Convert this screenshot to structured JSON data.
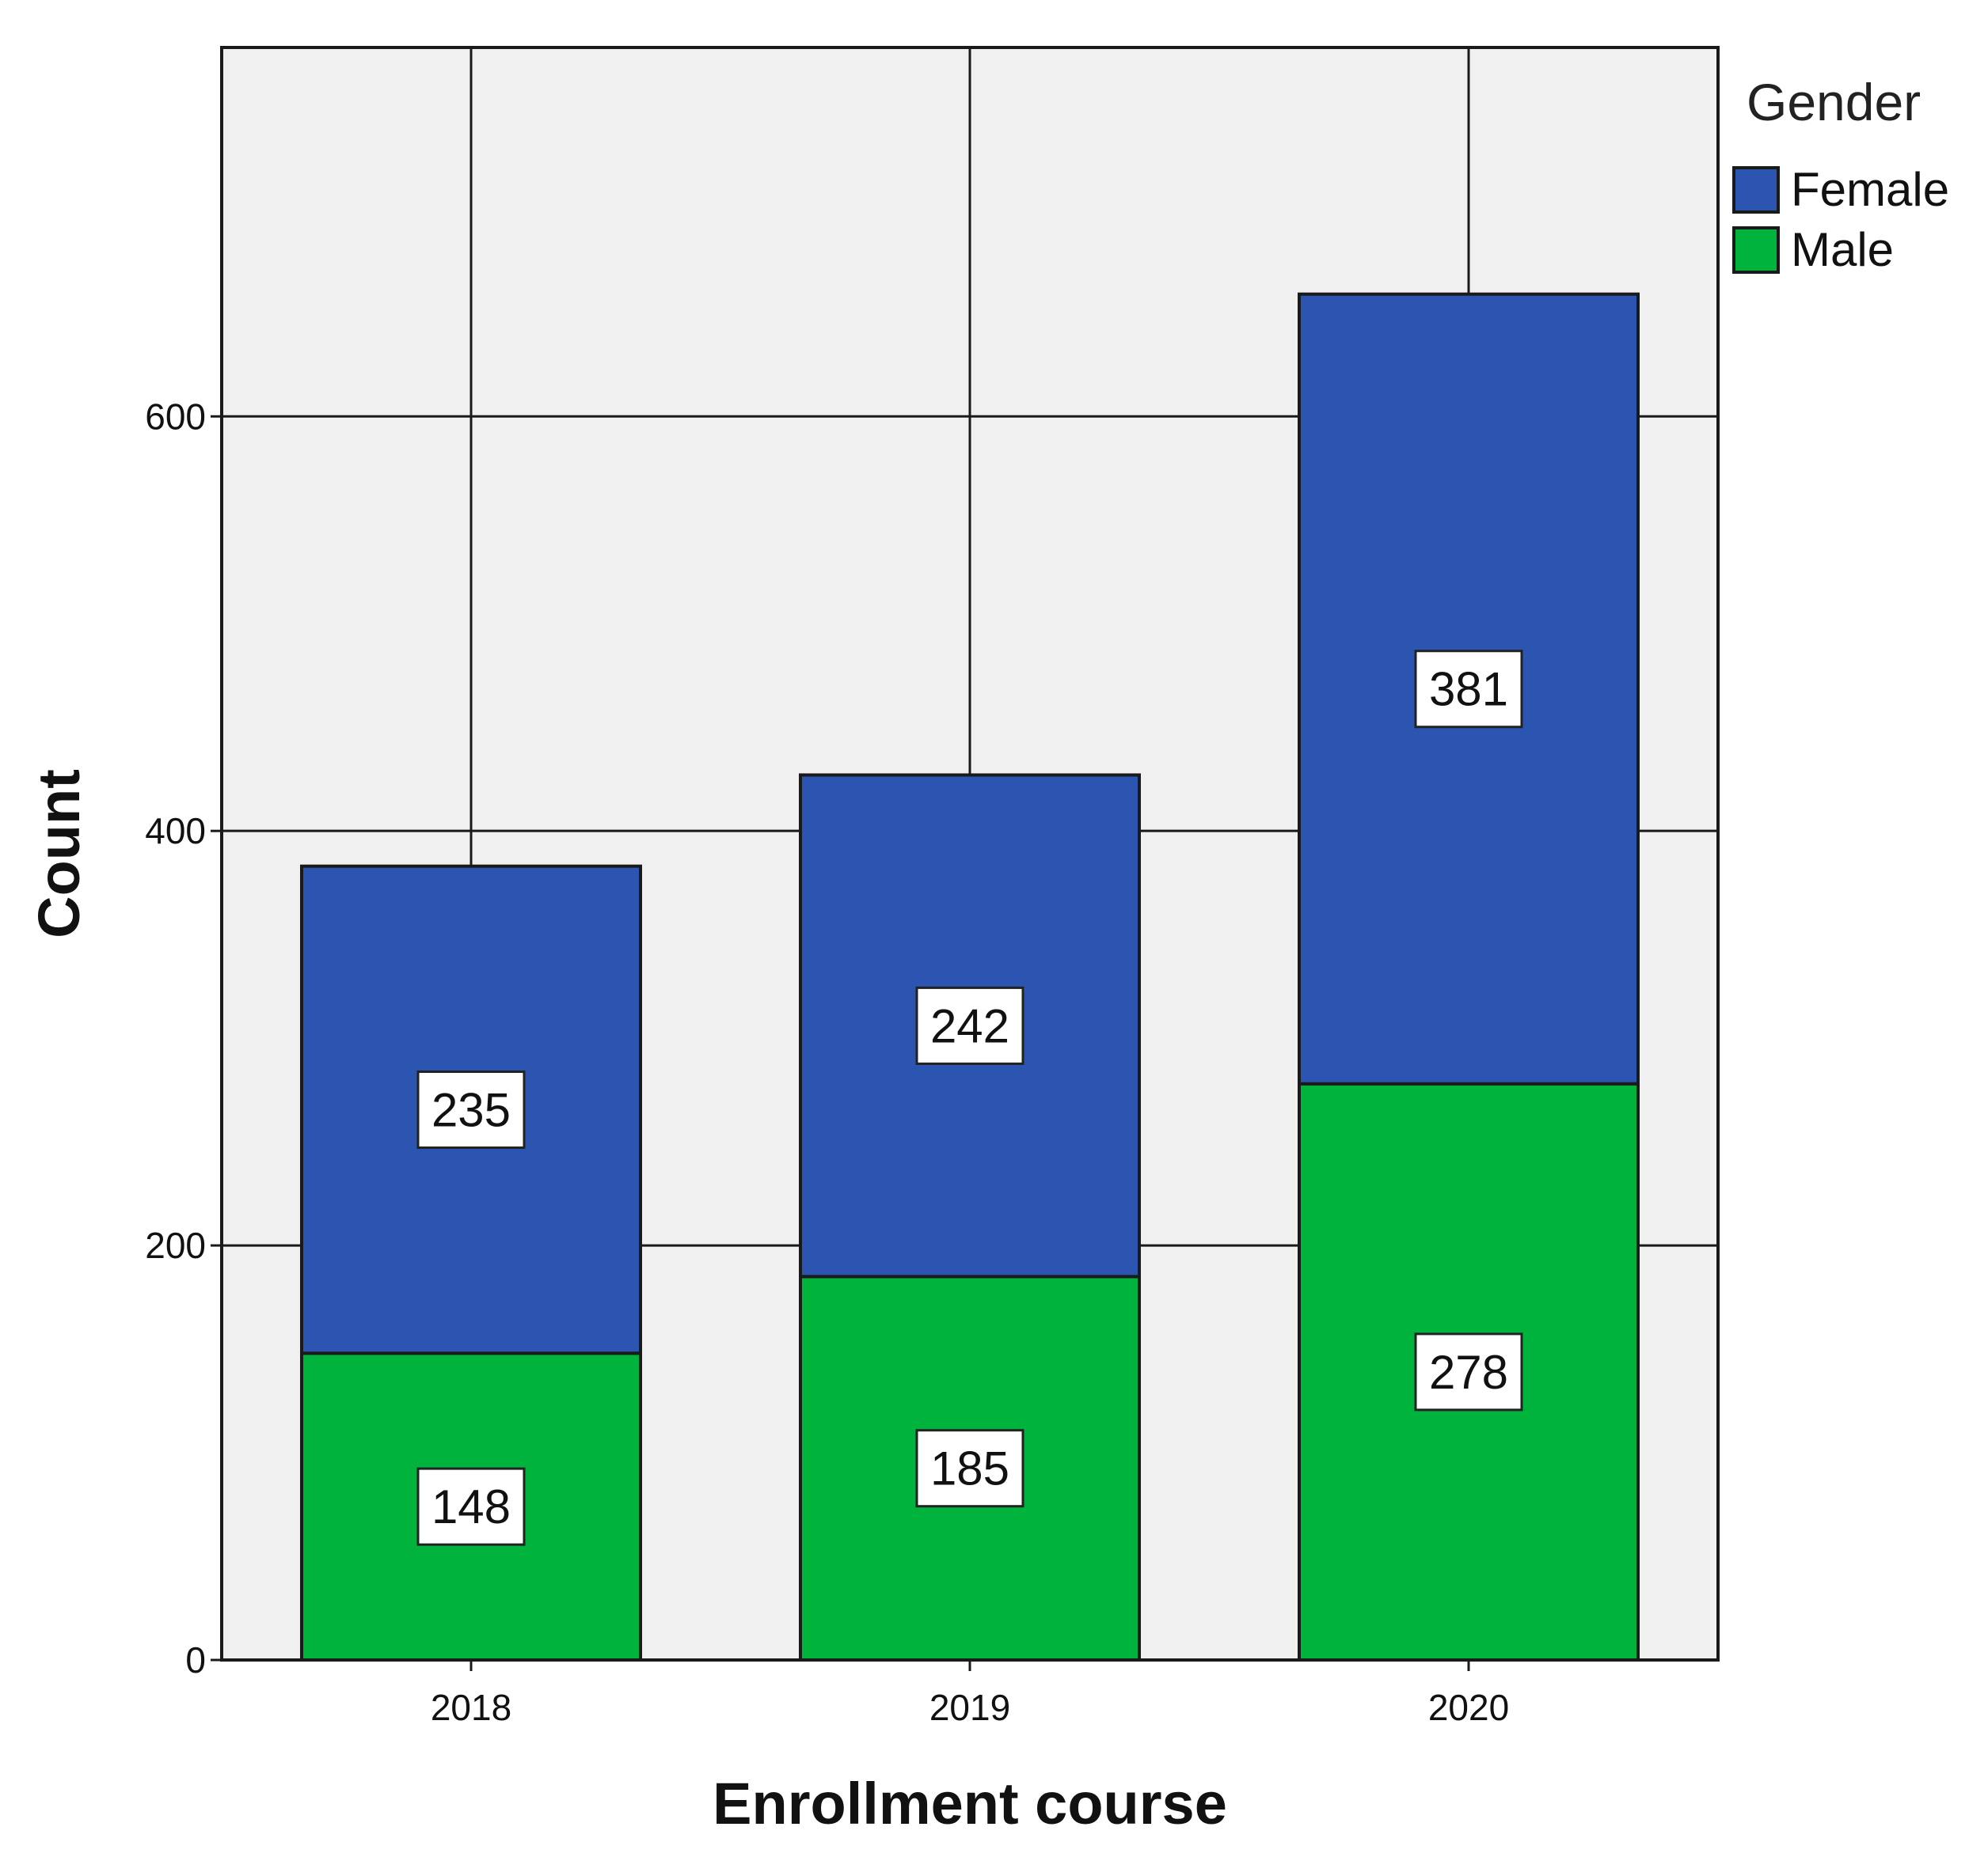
{
  "chart_data": {
    "type": "bar",
    "stacked": true,
    "categories": [
      "2018",
      "2019",
      "2020"
    ],
    "series": [
      {
        "name": "Male",
        "values": [
          148,
          185,
          278
        ],
        "color": "#00b33c"
      },
      {
        "name": "Female",
        "values": [
          235,
          242,
          381
        ],
        "color": "#2b55b0"
      }
    ],
    "title": "",
    "xlabel": "Enrollment course",
    "ylabel": "Count",
    "ylim": [
      0,
      778
    ],
    "yticks": [
      0,
      200,
      400,
      600
    ],
    "ytick_labels": [
      "0",
      "200",
      "400",
      "600"
    ],
    "grid": true,
    "legend": {
      "title": "Gender",
      "position": "top-right",
      "entries": [
        "Female",
        "Male"
      ]
    },
    "plot_background": "#f0f0f0"
  }
}
